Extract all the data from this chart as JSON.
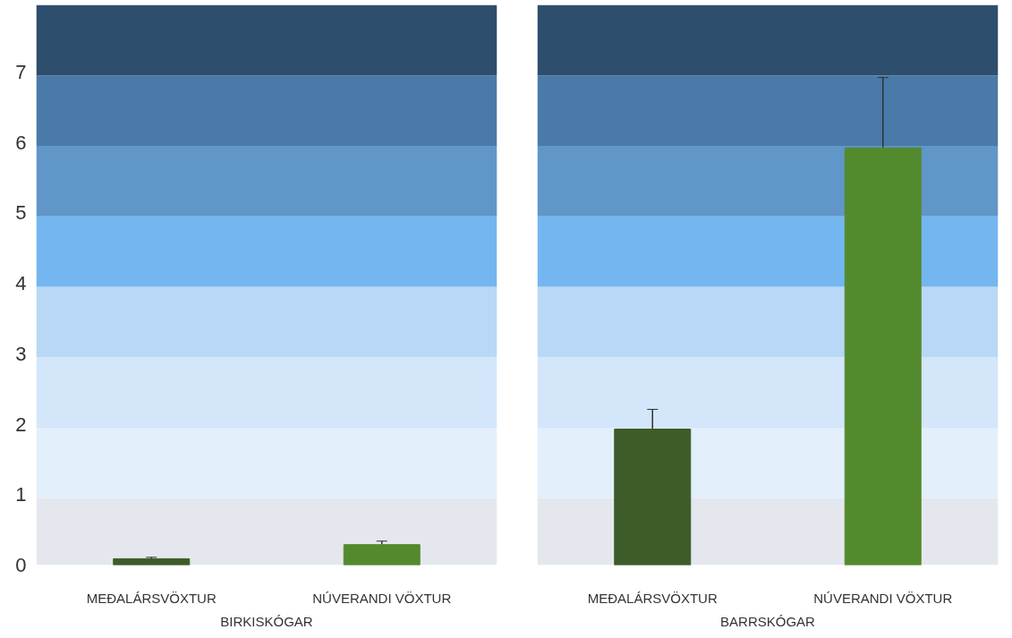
{
  "chart_data": [
    {
      "type": "bar",
      "xlabel": "BIRKISKÓGAR",
      "categories": [
        "MEÐALÁRSVÖXTUR",
        "NÚVERANDI VÖXTUR"
      ],
      "values": [
        0.09,
        0.29
      ],
      "errors": [
        0.02,
        0.05
      ],
      "colors": [
        "#3d5c2a",
        "#548a2e"
      ],
      "ylim": [
        0,
        7.95
      ],
      "yticks": [
        0,
        1,
        2,
        3,
        4,
        5,
        6,
        7
      ],
      "grid": false,
      "bands": [
        {
          "axis": "y",
          "from": 0,
          "to": 0.95,
          "color": "#e4e8ee"
        },
        {
          "axis": "y",
          "from": 0.95,
          "to": 1.95,
          "color": "#e4effc"
        },
        {
          "axis": "y",
          "from": 1.95,
          "to": 2.95,
          "color": "#d3e6fa"
        },
        {
          "axis": "y",
          "from": 2.95,
          "to": 3.95,
          "color": "#b8d8f5"
        },
        {
          "axis": "y",
          "from": 3.95,
          "to": 4.95,
          "color": "#74b6ef"
        },
        {
          "axis": "y",
          "from": 4.95,
          "to": 5.95,
          "color": "#6096c8"
        },
        {
          "axis": "y",
          "from": 5.95,
          "to": 6.95,
          "color": "#4a7aa8"
        },
        {
          "axis": "y",
          "from": 6.95,
          "to": 7.95,
          "color": "#2e4e6e"
        }
      ]
    },
    {
      "type": "bar",
      "xlabel": "BARRSKÓGAR",
      "categories": [
        "MEÐALÁRSVÖXTUR",
        "NÚVERANDI VÖXTUR"
      ],
      "values": [
        1.93,
        5.92
      ],
      "errors": [
        0.28,
        1.0
      ],
      "colors": [
        "#3d5c2a",
        "#548a2e"
      ],
      "ylim": [
        0,
        7.95
      ],
      "yticks": [
        0,
        1,
        2,
        3,
        4,
        5,
        6,
        7
      ],
      "grid": false,
      "tick_labels": "x",
      "bands": [
        {
          "axis": "y",
          "from": 0,
          "to": 0.95,
          "color": "#e4e8ee"
        },
        {
          "axis": "y",
          "from": 0.95,
          "to": 1.95,
          "color": "#e4effc"
        },
        {
          "axis": "y",
          "from": 1.95,
          "to": 2.95,
          "color": "#d3e6fa"
        },
        {
          "axis": "y",
          "from": 2.95,
          "to": 3.95,
          "color": "#b8d8f5"
        },
        {
          "axis": "y",
          "from": 3.95,
          "to": 4.95,
          "color": "#74b6ef"
        },
        {
          "axis": "y",
          "from": 4.95,
          "to": 5.95,
          "color": "#6096c8"
        },
        {
          "axis": "y",
          "from": 5.95,
          "to": 6.95,
          "color": "#4a7aa8"
        },
        {
          "axis": "y",
          "from": 6.95,
          "to": 7.95,
          "color": "#2e4e6e"
        }
      ]
    }
  ]
}
